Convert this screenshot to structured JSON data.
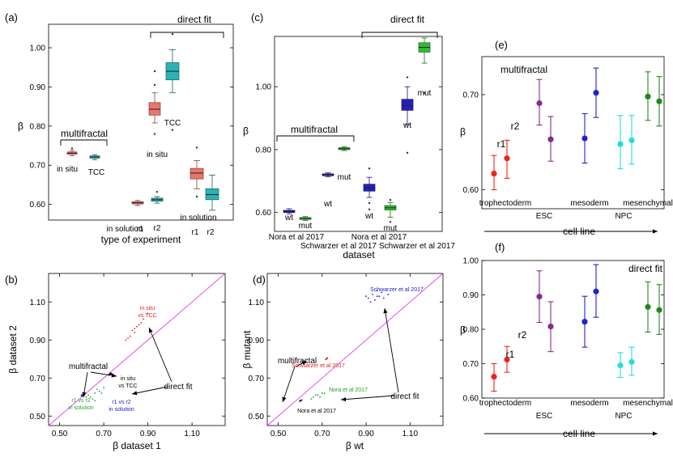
{
  "chart_data": [
    {
      "panel": "(a)",
      "type": "box",
      "xlabel": "type of experiment",
      "ylabel": "β",
      "ylim": [
        0.56,
        1.06
      ],
      "yticks": [
        "0.60",
        "0.70",
        "0.80",
        "0.90",
        "1.00"
      ],
      "group_labels": {
        "multifractal": "multifractal",
        "direct_fit": "direct fit",
        "in_solution_1": "in solution",
        "in_solution_2": "in solution"
      },
      "boxes": [
        {
          "label": "in situ",
          "color": "#e8766a",
          "q1": 0.728,
          "median": 0.731,
          "q3": 0.734,
          "wlo": 0.724,
          "whi": 0.738,
          "outliers": [
            0.743
          ]
        },
        {
          "label": "TCC",
          "color": "#2ab3b3",
          "q1": 0.718,
          "median": 0.721,
          "q3": 0.724,
          "wlo": 0.714,
          "whi": 0.727,
          "outliers": []
        },
        {
          "label": "r1",
          "color": "#e8766a",
          "q1": 0.601,
          "median": 0.604,
          "q3": 0.607,
          "wlo": 0.597,
          "whi": 0.61,
          "outliers": []
        },
        {
          "label": "r2",
          "color": "#2ab3b3",
          "q1": 0.608,
          "median": 0.612,
          "q3": 0.616,
          "wlo": 0.603,
          "whi": 0.62,
          "outliers": [
            0.632
          ]
        },
        {
          "label": "in situ",
          "color": "#e8766a",
          "q1": 0.828,
          "median": 0.843,
          "q3": 0.86,
          "wlo": 0.808,
          "whi": 0.885,
          "outliers": [
            0.78,
            0.94,
            0.905
          ]
        },
        {
          "label": "TCC",
          "color": "#2ab3b3",
          "q1": 0.918,
          "median": 0.94,
          "q3": 0.962,
          "wlo": 0.885,
          "whi": 0.995,
          "outliers": [
            0.79,
            1.035
          ]
        },
        {
          "label": "r1",
          "color": "#e8766a",
          "q1": 0.665,
          "median": 0.68,
          "q3": 0.692,
          "wlo": 0.64,
          "whi": 0.712,
          "outliers": [
            0.62,
            0.745
          ]
        },
        {
          "label": "r2",
          "color": "#2ab3b3",
          "q1": 0.612,
          "median": 0.625,
          "q3": 0.64,
          "wlo": 0.585,
          "whi": 0.675,
          "outliers": []
        }
      ]
    },
    {
      "panel": "(b)",
      "type": "scatter",
      "xlabel": "β dataset 1",
      "ylabel": "β dataset 2",
      "xlim": [
        0.45,
        1.25
      ],
      "ylim": [
        0.45,
        1.25
      ],
      "xticks": [
        "0.50",
        "0.70",
        "0.90",
        "1.10"
      ],
      "yticks": [
        "0.50",
        "0.70",
        "0.90",
        "1.10"
      ],
      "annotations": {
        "multifractal": "multifractal",
        "direct_fit": "direct fit"
      },
      "series": [
        {
          "name": "r1 vs r2 in solution (direct fit)",
          "color": "#2a9a2a",
          "label_lines": [
            "r1 vs r2",
            "in solution"
          ],
          "points": [
            [
              0.64,
              0.6
            ],
            [
              0.66,
              0.62
            ],
            [
              0.68,
              0.63
            ],
            [
              0.63,
              0.61
            ],
            [
              0.67,
              0.64
            ],
            [
              0.69,
              0.62
            ],
            [
              0.65,
              0.59
            ],
            [
              0.62,
              0.6
            ],
            [
              0.7,
              0.65
            ],
            [
              0.66,
              0.58
            ]
          ]
        },
        {
          "name": "r1 vs r2 in solution (multifractal)",
          "color": "#1a1acc",
          "label_lines": [
            "r1 vs r2",
            "in solution"
          ],
          "points": [
            [
              0.6,
              0.61
            ],
            [
              0.605,
              0.612
            ],
            [
              0.61,
              0.615
            ],
            [
              0.598,
              0.608
            ],
            [
              0.612,
              0.62
            ],
            [
              0.602,
              0.605
            ],
            [
              0.607,
              0.618
            ]
          ]
        },
        {
          "name": "in situ vs TCC (multifractal)",
          "color": "#000000",
          "label_lines": [
            "in situ",
            "vs TCC"
          ],
          "points": [
            [
              0.728,
              0.72
            ],
            [
              0.731,
              0.722
            ],
            [
              0.734,
              0.724
            ],
            [
              0.726,
              0.718
            ],
            [
              0.73,
              0.726
            ],
            [
              0.724,
              0.716
            ],
            [
              0.736,
              0.721
            ]
          ]
        },
        {
          "name": "in situ vs TCC (direct fit)",
          "color": "#e02020",
          "label_lines": [
            "in situ",
            "vs TCC"
          ],
          "points": [
            [
              0.8,
              0.9
            ],
            [
              0.82,
              0.92
            ],
            [
              0.84,
              0.94
            ],
            [
              0.86,
              0.98
            ],
            [
              0.83,
              0.95
            ],
            [
              0.85,
              0.97
            ],
            [
              0.81,
              0.91
            ],
            [
              0.87,
              0.99
            ],
            [
              0.88,
              1.01
            ],
            [
              0.84,
              0.96
            ],
            [
              0.9,
              1.04
            ]
          ]
        }
      ]
    },
    {
      "panel": "(c)",
      "type": "box",
      "xlabel": "dataset",
      "ylabel": "β",
      "ylim": [
        0.54,
        1.16
      ],
      "yticks": [
        "0.60",
        "0.80",
        "1.00"
      ],
      "group_labels": {
        "multifractal": "multifractal",
        "direct_fit": "direct fit"
      },
      "dataset_labels": [
        "Nora et al 2017",
        "Schwarzer et al 2017",
        "Nora et al 2017",
        "Schwarzer et al 2017"
      ],
      "boxes": [
        {
          "label": "wt",
          "color": "#2222bb",
          "q1": 0.6,
          "median": 0.603,
          "q3": 0.607,
          "wlo": 0.596,
          "whi": 0.612,
          "outliers": []
        },
        {
          "label": "mut",
          "color": "#33bb33",
          "q1": 0.578,
          "median": 0.581,
          "q3": 0.584,
          "wlo": 0.575,
          "whi": 0.587,
          "outliers": []
        },
        {
          "label": "wt",
          "color": "#2222bb",
          "q1": 0.717,
          "median": 0.72,
          "q3": 0.723,
          "wlo": 0.714,
          "whi": 0.726,
          "outliers": []
        },
        {
          "label": "mut",
          "color": "#33bb33",
          "q1": 0.8,
          "median": 0.803,
          "q3": 0.806,
          "wlo": 0.797,
          "whi": 0.809,
          "outliers": []
        },
        {
          "label": "wt",
          "color": "#2222bb",
          "q1": 0.668,
          "median": 0.678,
          "q3": 0.69,
          "wlo": 0.648,
          "whi": 0.712,
          "outliers": [
            0.63,
            0.61,
            0.74
          ]
        },
        {
          "label": "mut",
          "color": "#33bb33",
          "q1": 0.608,
          "median": 0.615,
          "q3": 0.622,
          "wlo": 0.585,
          "whi": 0.632,
          "outliers": [
            0.57,
            0.64
          ]
        },
        {
          "label": "wt",
          "color": "#2222bb",
          "q1": 0.925,
          "median": 0.94,
          "q3": 0.96,
          "wlo": 0.88,
          "whi": 1.0,
          "outliers": [
            0.79,
            1.03
          ]
        },
        {
          "label": "mut",
          "color": "#33bb33",
          "q1": 1.11,
          "median": 1.125,
          "q3": 1.14,
          "wlo": 1.075,
          "whi": 1.155,
          "outliers": [
            0.98
          ]
        }
      ]
    },
    {
      "panel": "(d)",
      "type": "scatter",
      "xlabel": "β wt",
      "ylabel": "β mutant",
      "xlim": [
        0.45,
        1.25
      ],
      "ylim": [
        0.45,
        1.25
      ],
      "xticks": [
        "0.50",
        "0.70",
        "0.90",
        "1.10"
      ],
      "yticks": [
        "0.50",
        "0.70",
        "0.90",
        "1.10"
      ],
      "annotations": {
        "multifractal": "multifractal",
        "direct_fit": "direct fit"
      },
      "series": [
        {
          "name": "Schwarzer et al 2017 (direct fit)",
          "color": "#1a1acc",
          "label": "Schwarzer et al 2017",
          "points": [
            [
              0.91,
              1.12
            ],
            [
              0.93,
              1.14
            ],
            [
              0.95,
              1.13
            ],
            [
              0.97,
              1.15
            ],
            [
              0.92,
              1.1
            ],
            [
              0.94,
              1.11
            ],
            [
              0.96,
              1.13
            ],
            [
              0.98,
              1.12
            ],
            [
              1.0,
              1.14
            ],
            [
              0.9,
              1.13
            ],
            [
              0.95,
              1.16
            ]
          ]
        },
        {
          "name": "Schwarzer et al 2017 (multifractal)",
          "color": "#e02020",
          "label": "Schwarzer et al 2017",
          "points": [
            [
              0.718,
              0.8
            ],
            [
              0.721,
              0.803
            ],
            [
              0.724,
              0.806
            ],
            [
              0.716,
              0.798
            ],
            [
              0.722,
              0.801
            ]
          ]
        },
        {
          "name": "Nora et al 2017 (direct fit)",
          "color": "#2a9a2a",
          "label": "Nora et al 2017",
          "points": [
            [
              0.66,
              0.6
            ],
            [
              0.68,
              0.61
            ],
            [
              0.7,
              0.62
            ],
            [
              0.67,
              0.61
            ],
            [
              0.69,
              0.6
            ],
            [
              0.71,
              0.62
            ],
            [
              0.65,
              0.59
            ]
          ]
        },
        {
          "name": "Nora et al 2017 (multifractal)",
          "color": "#000000",
          "label": "Nora et al 2017",
          "points": [
            [
              0.6,
              0.58
            ],
            [
              0.603,
              0.582
            ],
            [
              0.606,
              0.584
            ],
            [
              0.598,
              0.578
            ],
            [
              0.604,
              0.583
            ]
          ]
        }
      ]
    },
    {
      "panel": "(e)",
      "type": "errorbar",
      "xlabel": "cell line",
      "ylabel": "β",
      "ylim": [
        0.58,
        0.74
      ],
      "yticks": [
        "0.60",
        "0.70"
      ],
      "annotation": "multifractal",
      "categories": [
        "trophectoderm",
        "ESC",
        "mesoderm",
        "NPC",
        "mesenchymal"
      ],
      "category_colors": [
        "#ee2222",
        "#8a2a8a",
        "#2222cc",
        "#22dddd",
        "#228822"
      ],
      "replicate_labels": [
        "r1",
        "r2"
      ],
      "points": [
        {
          "cat": 0,
          "rep": 0,
          "y": 0.617,
          "lo": 0.6,
          "hi": 0.636
        },
        {
          "cat": 0,
          "rep": 1,
          "y": 0.633,
          "lo": 0.612,
          "hi": 0.652
        },
        {
          "cat": 1,
          "rep": 0,
          "y": 0.691,
          "lo": 0.668,
          "hi": 0.716
        },
        {
          "cat": 1,
          "rep": 1,
          "y": 0.653,
          "lo": 0.63,
          "hi": 0.677
        },
        {
          "cat": 2,
          "rep": 0,
          "y": 0.654,
          "lo": 0.628,
          "hi": 0.68
        },
        {
          "cat": 2,
          "rep": 1,
          "y": 0.702,
          "lo": 0.676,
          "hi": 0.728
        },
        {
          "cat": 3,
          "rep": 0,
          "y": 0.648,
          "lo": 0.622,
          "hi": 0.678
        },
        {
          "cat": 3,
          "rep": 1,
          "y": 0.652,
          "lo": 0.627,
          "hi": 0.678
        },
        {
          "cat": 4,
          "rep": 0,
          "y": 0.698,
          "lo": 0.673,
          "hi": 0.724
        },
        {
          "cat": 4,
          "rep": 1,
          "y": 0.693,
          "lo": 0.667,
          "hi": 0.719
        }
      ]
    },
    {
      "panel": "(f)",
      "type": "errorbar",
      "xlabel": "cell line",
      "ylabel": "β",
      "ylim": [
        0.6,
        1.0
      ],
      "yticks": [
        "0.60",
        "0.70",
        "0.80",
        "0.90",
        "1.00"
      ],
      "annotation": "direct fit",
      "categories": [
        "trophectoderm",
        "ESC",
        "mesoderm",
        "NPC",
        "mesenchymal"
      ],
      "category_colors": [
        "#ee2222",
        "#8a2a8a",
        "#2222cc",
        "#22dddd",
        "#228822"
      ],
      "replicate_labels": [
        "r1",
        "r2"
      ],
      "points": [
        {
          "cat": 0,
          "rep": 0,
          "y": 0.662,
          "lo": 0.62,
          "hi": 0.7
        },
        {
          "cat": 0,
          "rep": 1,
          "y": 0.712,
          "lo": 0.675,
          "hi": 0.75
        },
        {
          "cat": 1,
          "rep": 0,
          "y": 0.895,
          "lo": 0.82,
          "hi": 0.97
        },
        {
          "cat": 1,
          "rep": 1,
          "y": 0.808,
          "lo": 0.735,
          "hi": 0.88
        },
        {
          "cat": 2,
          "rep": 0,
          "y": 0.822,
          "lo": 0.748,
          "hi": 0.896
        },
        {
          "cat": 2,
          "rep": 1,
          "y": 0.91,
          "lo": 0.835,
          "hi": 0.988
        },
        {
          "cat": 3,
          "rep": 0,
          "y": 0.695,
          "lo": 0.66,
          "hi": 0.732
        },
        {
          "cat": 3,
          "rep": 1,
          "y": 0.705,
          "lo": 0.666,
          "hi": 0.748
        },
        {
          "cat": 4,
          "rep": 0,
          "y": 0.865,
          "lo": 0.792,
          "hi": 0.938
        },
        {
          "cat": 4,
          "rep": 1,
          "y": 0.856,
          "lo": 0.785,
          "hi": 0.93
        }
      ]
    }
  ]
}
